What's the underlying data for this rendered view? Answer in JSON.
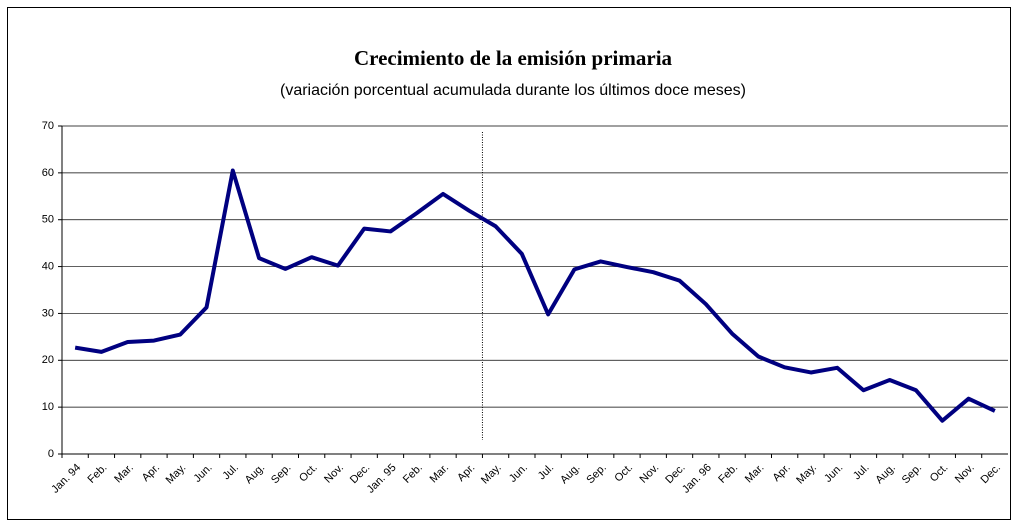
{
  "chart_data": {
    "type": "line",
    "title": "Crecimiento de la emisión primaria",
    "subtitle": "(variación porcentual acumulada durante los últimos doce meses)",
    "categories": [
      "Jan. 94",
      "Feb.",
      "Mar.",
      "Apr.",
      "May.",
      "Jun.",
      "Jul.",
      "Aug.",
      "Sep.",
      "Oct.",
      "Nov.",
      "Dec.",
      "Jan. 95",
      "Feb.",
      "Mar.",
      "Apr.",
      "May.",
      "Jun.",
      "Jul.",
      "Aug.",
      "Sep.",
      "Oct.",
      "Nov.",
      "Dec.",
      "Jan. 96",
      "Feb.",
      "Mar.",
      "Apr.",
      "May.",
      "Jun.",
      "Jul.",
      "Aug.",
      "Sep.",
      "Oct.",
      "Nov.",
      "Dec."
    ],
    "series": [
      {
        "color": "#000080",
        "values": [
          22.7,
          21.8,
          23.9,
          24.2,
          25.5,
          31.3,
          60.5,
          41.8,
          39.5,
          42.0,
          40.2,
          48.1,
          47.5,
          51.4,
          55.5,
          51.9,
          48.6,
          42.7,
          29.8,
          39.4,
          41.1,
          39.9,
          38.8,
          37.0,
          32.0,
          25.7,
          20.8,
          18.5,
          17.4,
          18.4,
          13.6,
          15.8,
          13.6,
          7.1,
          11.8,
          9.2
        ]
      }
    ],
    "ylim": [
      0,
      70
    ],
    "yticks": [
      0,
      10,
      20,
      30,
      40,
      50,
      60,
      70
    ],
    "grid": true,
    "vline": 15
  }
}
